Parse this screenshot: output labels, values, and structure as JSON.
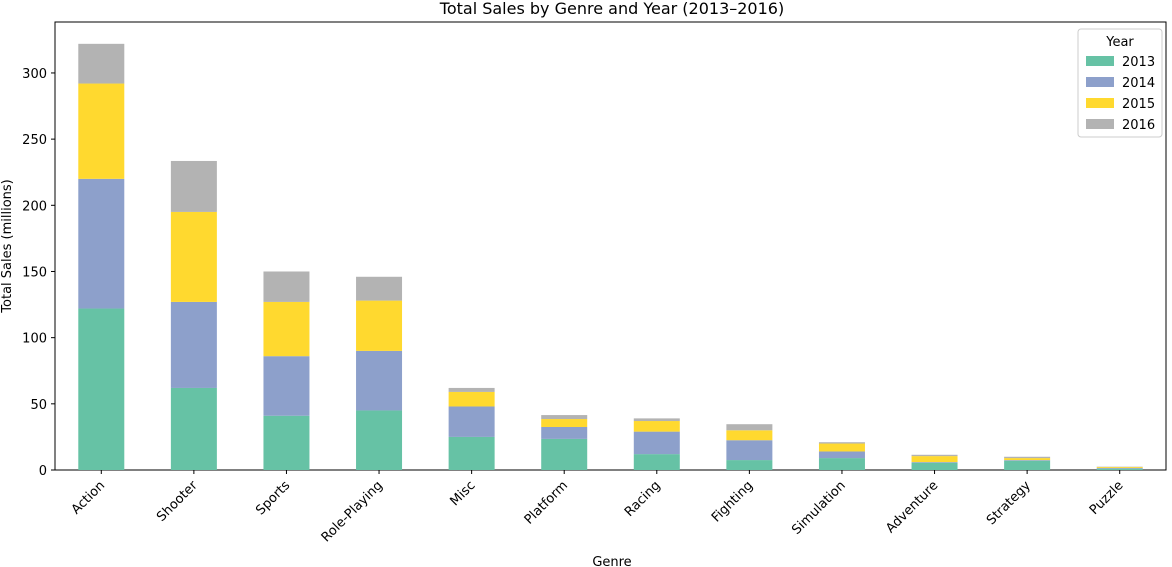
{
  "chart_data": {
    "type": "stacked_bar",
    "title": "Total Sales by Genre and Year (2013–2016)",
    "x_label": "Genre",
    "y_label": "Total Sales (millions)",
    "categories": [
      "Action",
      "Shooter",
      "Sports",
      "Role-Playing",
      "Misc",
      "Platform",
      "Racing",
      "Fighting",
      "Simulation",
      "Adventure",
      "Strategy",
      "Puzzle"
    ],
    "series": [
      {
        "name": "2013",
        "color": "#66c2a5",
        "values": [
          122,
          62,
          41,
          45,
          25,
          23.5,
          12,
          7.5,
          9,
          5.5,
          7,
          1
        ]
      },
      {
        "name": "2014",
        "color": "#8da0cb",
        "values": [
          98,
          65,
          45,
          45,
          23,
          9,
          17,
          15,
          5,
          0.5,
          0.5,
          0.5
        ]
      },
      {
        "name": "2015",
        "color": "#ffd92f",
        "values": [
          72,
          68,
          41,
          38,
          11,
          6,
          8,
          7.5,
          6,
          4.5,
          1.5,
          0.7
        ]
      },
      {
        "name": "2016",
        "color": "#b3b3b3",
        "values": [
          30,
          38.5,
          23,
          18,
          3,
          3,
          2,
          4.6,
          1,
          1,
          1,
          0.3
        ]
      }
    ],
    "legend_title": "Year",
    "legend": "upper right",
    "ylim": [
      0,
      338.5
    ],
    "yticks": [
      0,
      50,
      100,
      150,
      200,
      250,
      300
    ],
    "grid": false
  }
}
